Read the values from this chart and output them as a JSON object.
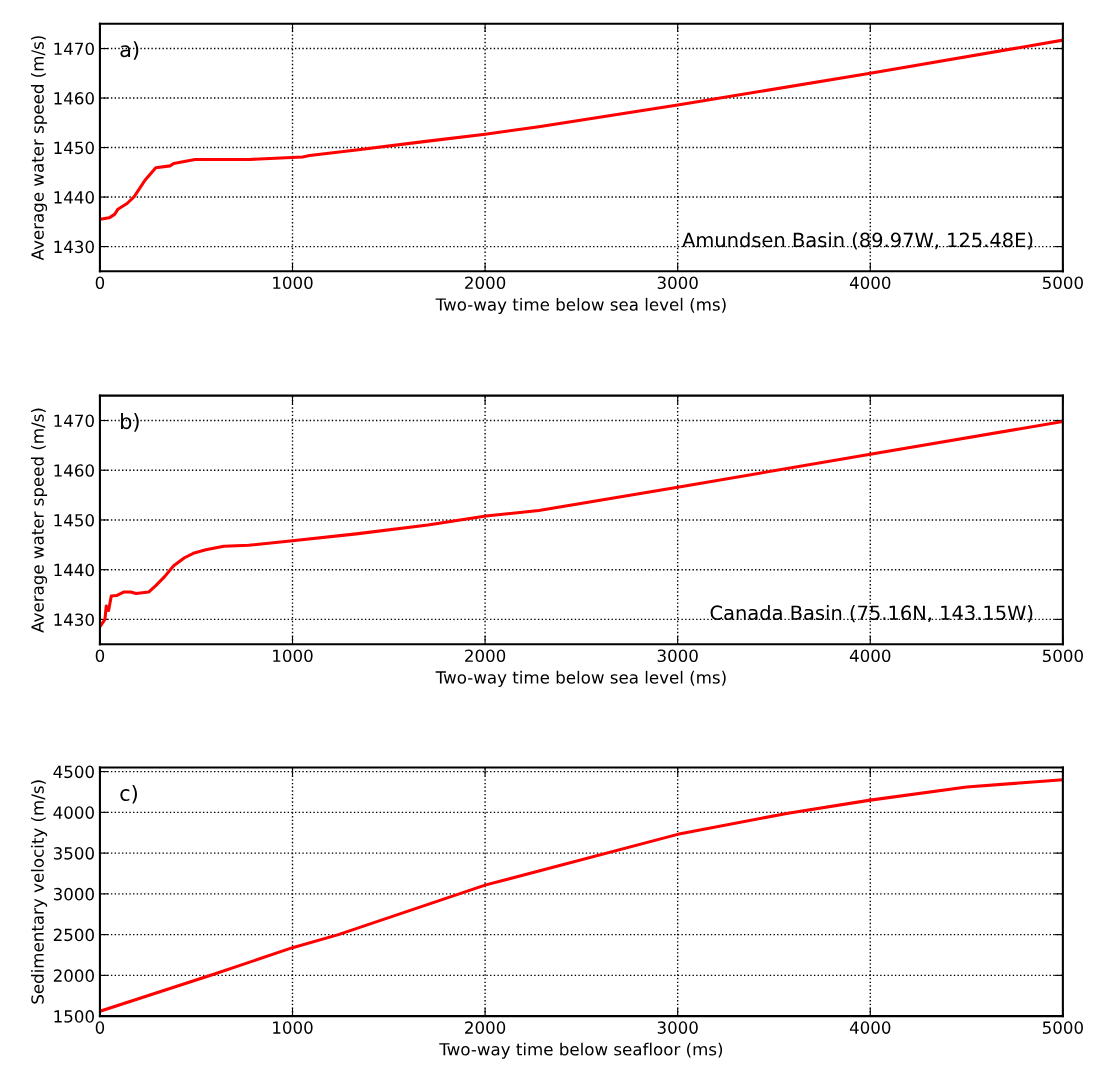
{
  "chart_data": [
    {
      "type": "line",
      "xlabel": "Two-way time below sea level (ms)",
      "ylabel": "Average water speed (m/s)",
      "annotations": [
        "a)",
        "Amundsen Basin (89.97W, 125.48E)"
      ],
      "x": [
        0,
        48,
        76,
        95,
        141,
        178,
        234,
        290,
        364,
        383,
        494,
        773,
        1052,
        1089,
        1331,
        1703,
        2000,
        2279,
        3000,
        4000,
        5000
      ],
      "series": [
        {
          "color": "#ff0000",
          "values": [
            1435.5,
            1435.8,
            1436.5,
            1437.6,
            1438.7,
            1440.1,
            1443.4,
            1445.9,
            1446.3,
            1446.8,
            1447.6,
            1447.6,
            1448.1,
            1448.4,
            1449.5,
            1451.3,
            1452.7,
            1454.2,
            1458.6,
            1465.0,
            1471.7
          ]
        }
      ],
      "xlim": [
        0,
        5000
      ],
      "xticks": [
        0,
        1000,
        2000,
        3000,
        4000,
        5000
      ],
      "ylim": [
        1425,
        1475
      ],
      "yticks": [
        1430,
        1440,
        1450,
        1460,
        1470
      ],
      "grid": true,
      "line_style": "solid",
      "marker": "none"
    },
    {
      "type": "line",
      "xlabel": "Two-way time below sea level (ms)",
      "ylabel": "Average water speed (m/s)",
      "annotations": [
        "b)",
        "Canada Basin (75.16N, 143.15W)"
      ],
      "x": [
        5,
        26,
        33,
        45,
        59,
        86,
        123,
        160,
        188,
        253,
        290,
        336,
        383,
        439,
        485,
        550,
        643,
        773,
        1000,
        1331,
        1703,
        2004,
        2279,
        3000,
        4000,
        5000
      ],
      "series": [
        {
          "color": "#ff0000",
          "values": [
            1428.8,
            1430.0,
            1432.7,
            1431.8,
            1434.7,
            1434.8,
            1435.5,
            1435.5,
            1435.2,
            1435.5,
            1436.8,
            1438.6,
            1440.8,
            1442.4,
            1443.3,
            1444.0,
            1444.7,
            1444.9,
            1445.8,
            1447.2,
            1449.0,
            1450.8,
            1451.9,
            1456.6,
            1463.2,
            1469.8
          ]
        }
      ],
      "xlim": [
        0,
        5000
      ],
      "xticks": [
        0,
        1000,
        2000,
        3000,
        4000,
        5000
      ],
      "ylim": [
        1425,
        1475
      ],
      "yticks": [
        1430,
        1440,
        1450,
        1460,
        1470
      ],
      "grid": true,
      "line_style": "solid",
      "marker": "none"
    },
    {
      "type": "line",
      "xlabel": "Two-way time below seafloor (ms)",
      "ylabel": "Sedimentary velocity (m/s)",
      "annotations": [
        "c)"
      ],
      "x": [
        0,
        587,
        1000,
        1238,
        2004,
        2279,
        3000,
        3573,
        4000,
        4500,
        5000
      ],
      "series": [
        {
          "color": "#ff0000",
          "values": [
            1560,
            2010,
            2340,
            2500,
            3110,
            3280,
            3730,
            3990,
            4150,
            4310,
            4400
          ]
        }
      ],
      "xlim": [
        0,
        5000
      ],
      "xticks": [
        0,
        1000,
        2000,
        3000,
        4000,
        5000
      ],
      "ylim": [
        1500,
        4550
      ],
      "yticks": [
        1500,
        2000,
        2500,
        3000,
        3500,
        4000,
        4500
      ],
      "grid": true,
      "line_style": "solid",
      "marker": "none"
    }
  ]
}
